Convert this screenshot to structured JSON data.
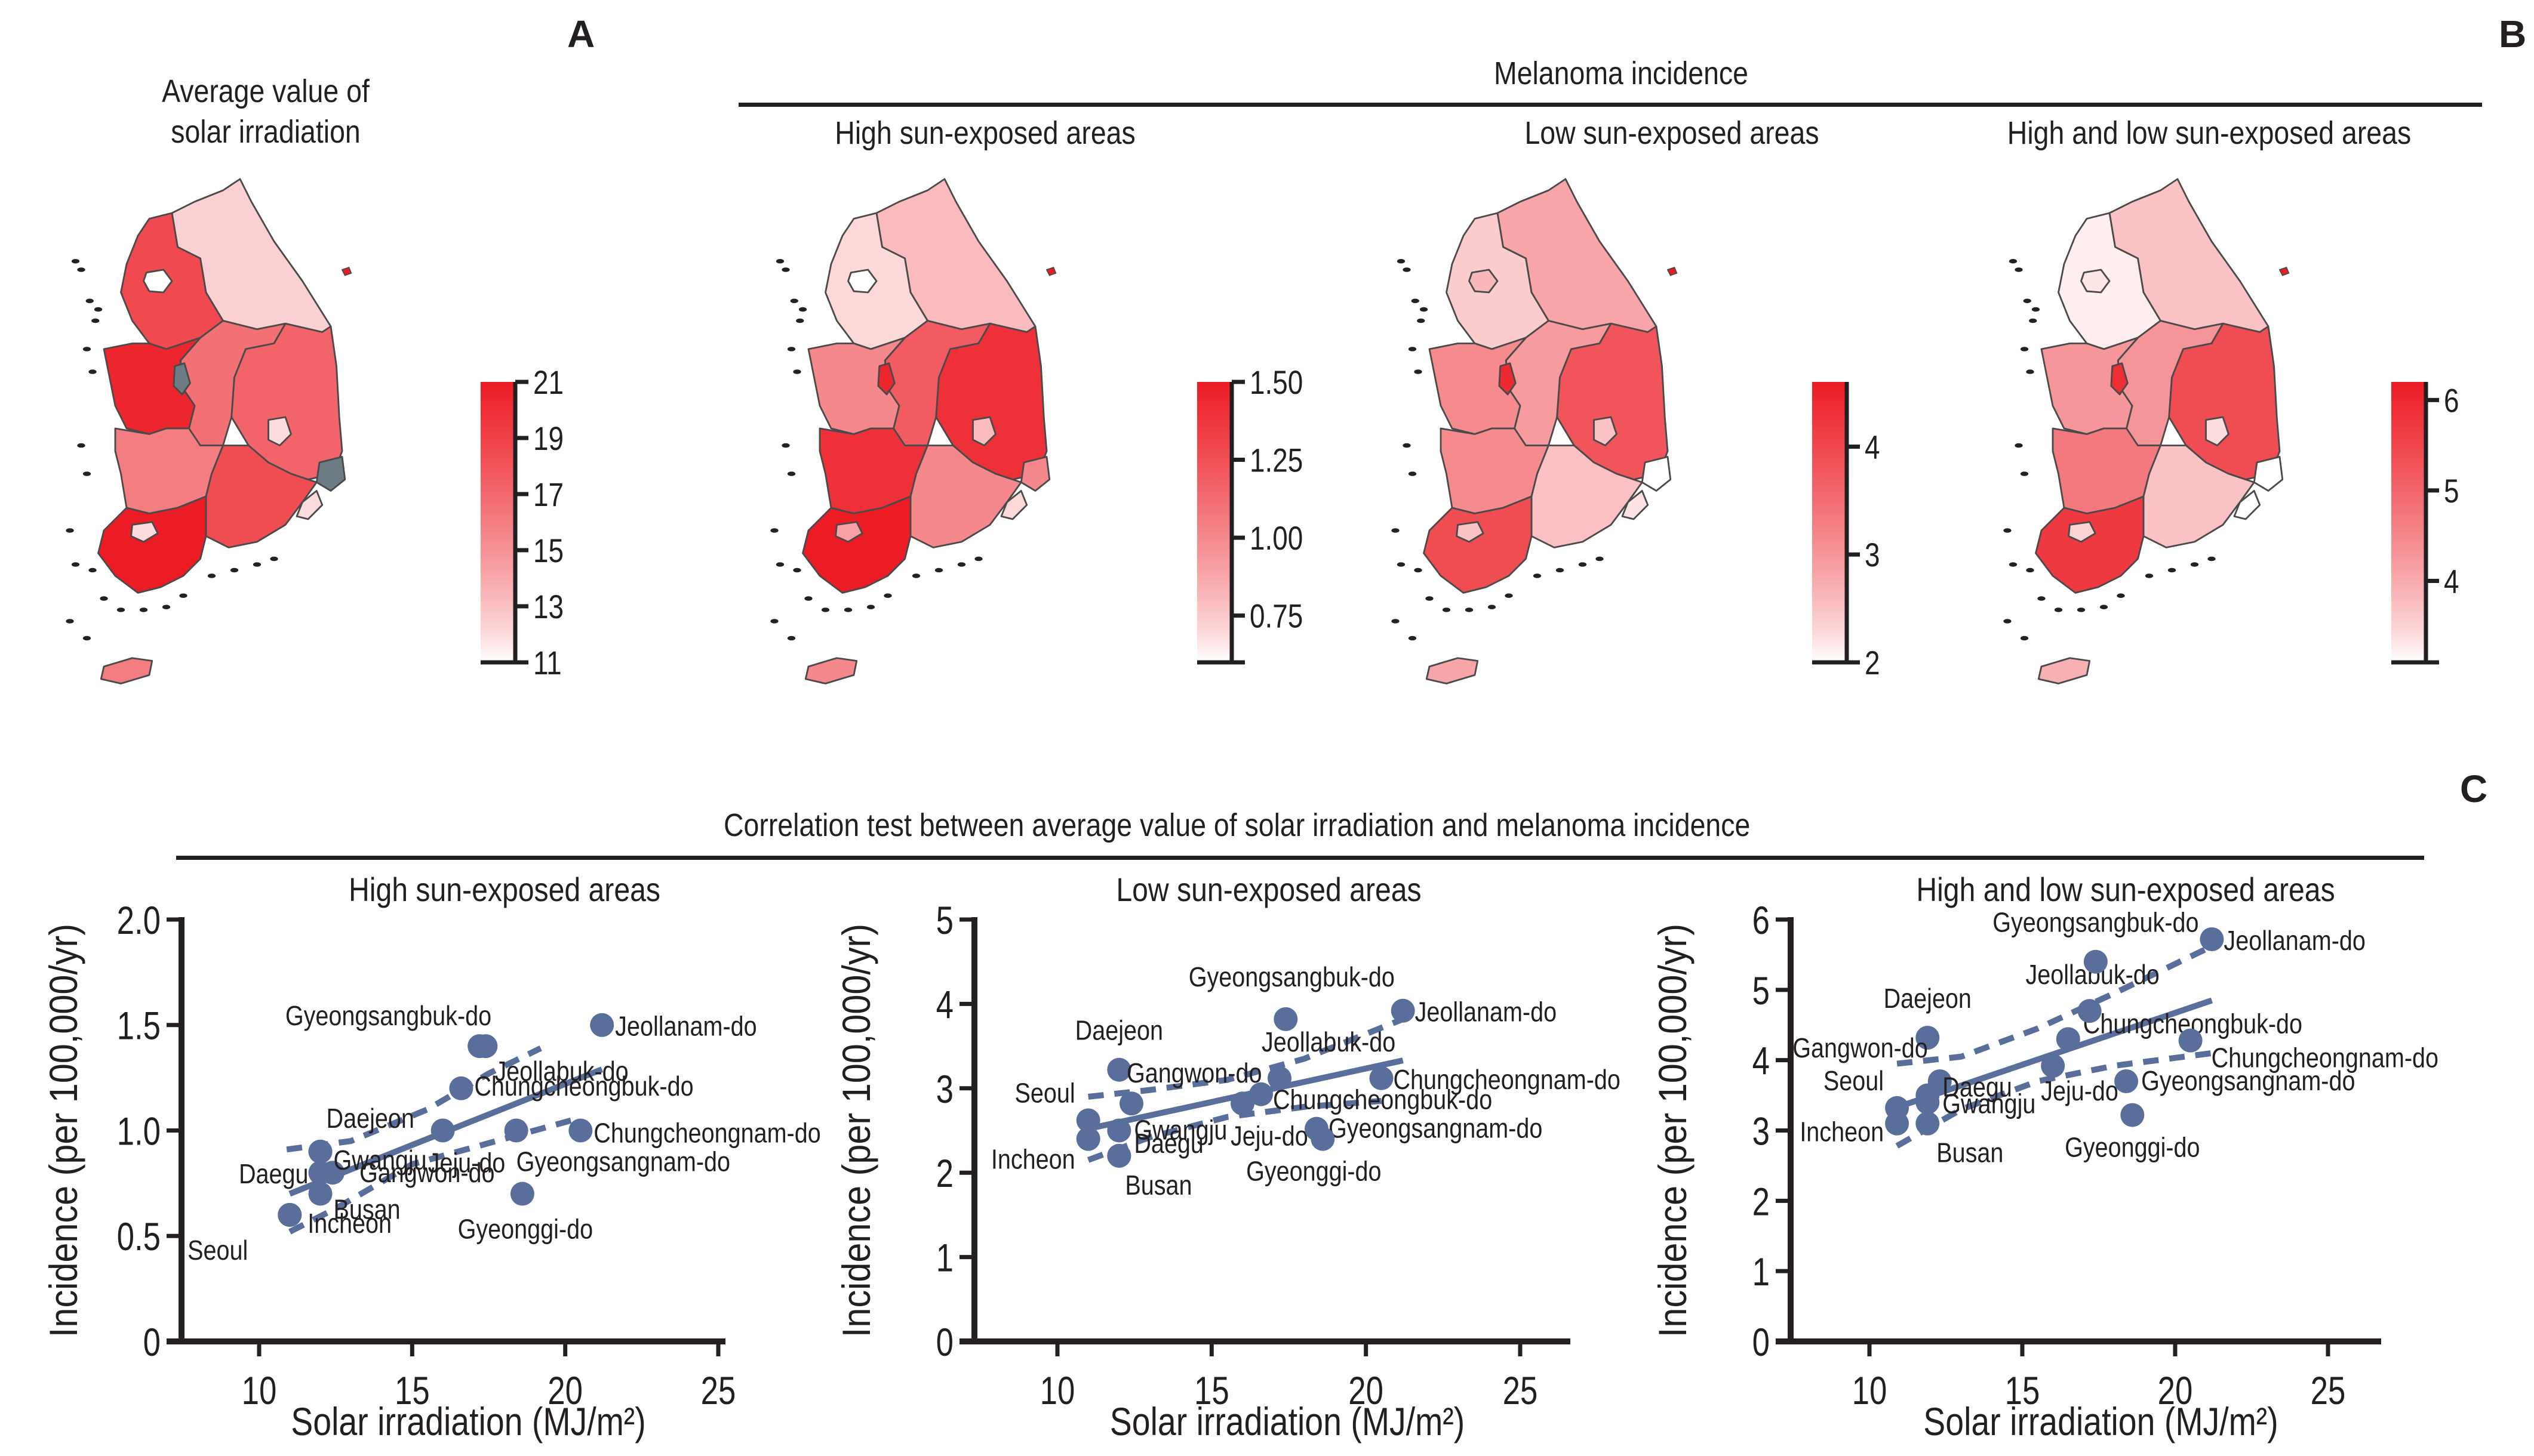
{
  "panel_labels": {
    "a": "A",
    "b": "B",
    "c": "C"
  },
  "panel_a": {
    "title_line1": "Average value of",
    "title_line2": "solar irradiation"
  },
  "panel_b": {
    "header": "Melanoma incidence",
    "subtitles": [
      "High sun-exposed areas",
      "Low sun-exposed areas",
      "High and low sun-exposed areas"
    ]
  },
  "panel_c": {
    "header": "Correlation test between average value of solar irradiation and melanoma incidence"
  },
  "colors": {
    "scale_low": "#ffffff",
    "scale_high": "#ec1c24",
    "point": "#5a6e9c",
    "line": "#5a6e9c",
    "axis": "#231f20",
    "missing": "#6d7b85",
    "border": "#4a4a4a"
  },
  "maps": [
    {
      "id": "solar",
      "colorbar": {
        "min": 11,
        "max": 21,
        "ticks": [
          11,
          13,
          15,
          17,
          19,
          21
        ],
        "tick_labels": [
          "11",
          "13",
          "15",
          "17",
          "19",
          "21"
        ]
      },
      "regions": {
        "Gyeonggi-do": 18.6,
        "Gangwon-do": 12.4,
        "Chungcheongnam-do": 20.5,
        "Chungcheongbuk-do": 16.6,
        "Gyeongsangbuk-do": 17.2,
        "Jeollabuk-do": 16.0,
        "Gyeongsangnam-do": 18.4,
        "Jeollanam-do": 21.2,
        "Jeju-do": 16.0,
        "Seoul": 11.0,
        "Daejeon": null,
        "Daegu": 12.0,
        "Gwangju": 12.0,
        "Busan": 12.0,
        "Ulsan": null
      }
    },
    {
      "id": "high",
      "colorbar": {
        "min": 0.6,
        "max": 1.5,
        "ticks": [
          0.75,
          1.0,
          1.25,
          1.5
        ],
        "tick_labels": [
          "0.75",
          "1.00",
          "1.25",
          "1.50"
        ]
      },
      "regions": {
        "Gyeonggi-do": 0.7,
        "Gangwon-do": 0.8,
        "Chungcheongnam-do": 1.0,
        "Chungcheongbuk-do": 1.2,
        "Gyeongsangbuk-do": 1.4,
        "Jeollabuk-do": 1.4,
        "Gyeongsangnam-do": 1.0,
        "Jeollanam-do": 1.5,
        "Jeju-do": 1.0,
        "Seoul": 0.6,
        "Daejeon": 1.45,
        "Daegu": 0.8,
        "Gwangju": 0.9,
        "Busan": 0.7,
        "Ulsan": 1.0
      }
    },
    {
      "id": "low",
      "colorbar": {
        "min": 2,
        "max": 4.6,
        "ticks": [
          2,
          3,
          4
        ],
        "tick_labels": [
          "2",
          "3",
          "4"
        ]
      },
      "regions": {
        "Gyeonggi-do": 2.4,
        "Gangwon-do": 2.82,
        "Chungcheongnam-do": 3.12,
        "Chungcheongbuk-do": 2.93,
        "Gyeongsangbuk-do": 3.82,
        "Jeollabuk-do": 3.12,
        "Gyeongsangnam-do": 2.52,
        "Jeollanam-do": 3.92,
        "Jeju-do": 2.82,
        "Seoul": 2.62,
        "Daejeon": 4.4,
        "Daegu": 2.5,
        "Gwangju": 2.5,
        "Busan": 2.2,
        "Ulsan": 2.0
      }
    },
    {
      "id": "both",
      "colorbar": {
        "min": 3.1,
        "max": 6.2,
        "ticks": [
          4,
          5,
          6
        ],
        "tick_labels": [
          "4",
          "5",
          "6"
        ]
      },
      "regions": {
        "Gyeonggi-do": 3.22,
        "Gangwon-do": 3.7,
        "Chungcheongnam-do": 4.28,
        "Chungcheongbuk-do": 4.3,
        "Gyeongsangbuk-do": 5.4,
        "Jeollabuk-do": 4.7,
        "Gyeongsangnam-do": 3.7,
        "Jeollanam-do": 5.72,
        "Jeju-do": 3.92,
        "Seoul": 3.32,
        "Daejeon": 5.9,
        "Daegu": 3.4,
        "Gwangju": 3.5,
        "Busan": 3.1,
        "Ulsan": 3.1
      }
    }
  ],
  "chart_data": [
    {
      "type": "scatter",
      "title": "High sun-exposed areas",
      "xlabel": "Solar irradiation (MJ/m²)",
      "ylabel": "Incidence (per 100,000/yr)",
      "xlim": [
        7.5,
        26.5
      ],
      "ylim": [
        0,
        2.0
      ],
      "xticks": [
        10,
        15,
        20,
        25
      ],
      "yticks": [
        0,
        0.5,
        1.0,
        1.5,
        2.0
      ],
      "ytick_labels": [
        "0",
        "0.5",
        "1.0",
        "1.5",
        "2.0"
      ],
      "grid": false,
      "points": [
        {
          "label": "Seoul",
          "x": 11.0,
          "y": 0.6
        },
        {
          "label": "Incheon",
          "x": 11.0,
          "y": 0.6
        },
        {
          "label": "Busan",
          "x": 12.0,
          "y": 0.7
        },
        {
          "label": "Daegu",
          "x": 12.0,
          "y": 0.8
        },
        {
          "label": "Gangwon-do",
          "x": 12.4,
          "y": 0.8
        },
        {
          "label": "Gwangju",
          "x": 12.0,
          "y": 0.9
        },
        {
          "label": "Daejeon",
          "x": 12.0,
          "y": 0.9
        },
        {
          "label": "Jeju-do",
          "x": 16.0,
          "y": 1.0
        },
        {
          "label": "Chungcheongbuk-do",
          "x": 16.6,
          "y": 1.2
        },
        {
          "label": "Gyeongsangbuk-do",
          "x": 17.2,
          "y": 1.4
        },
        {
          "label": "Jeollabuk-do",
          "x": 17.4,
          "y": 1.4
        },
        {
          "label": "Jeollanam-do",
          "x": 21.2,
          "y": 1.5
        },
        {
          "label": "Chungcheongnam-do",
          "x": 20.5,
          "y": 1.0
        },
        {
          "label": "Gyeongsangnam-do",
          "x": 18.4,
          "y": 1.0
        },
        {
          "label": "Gyeonggi-do",
          "x": 18.6,
          "y": 0.7
        }
      ],
      "fit": {
        "x": [
          11.0,
          21.2
        ],
        "y": [
          0.7,
          1.29
        ]
      },
      "ci_upper": {
        "x": [
          10.9,
          13.0,
          15.5,
          17.5,
          19.2
        ],
        "y": [
          0.91,
          0.95,
          1.1,
          1.27,
          1.39
        ]
      },
      "ci_lower": {
        "x": [
          11.0,
          12.5,
          15.0,
          18.0,
          20.5
        ],
        "y": [
          0.52,
          0.63,
          0.84,
          0.96,
          1.06
        ]
      }
    },
    {
      "type": "scatter",
      "title": "Low sun-exposed areas",
      "xlabel": "Solar irradiation (MJ/m²)",
      "ylabel": "Incidence (per 100,000/yr)",
      "xlim": [
        7.5,
        26.5
      ],
      "ylim": [
        0,
        5
      ],
      "xticks": [
        10,
        15,
        20,
        25
      ],
      "yticks": [
        0,
        1,
        2,
        3,
        4,
        5
      ],
      "ytick_labels": [
        "0",
        "1",
        "2",
        "3",
        "4",
        "5"
      ],
      "grid": false,
      "points": [
        {
          "label": "Seoul",
          "x": 11.0,
          "y": 2.62
        },
        {
          "label": "Incheon",
          "x": 11.0,
          "y": 2.4
        },
        {
          "label": "Daejeon",
          "x": 12.0,
          "y": 3.22
        },
        {
          "label": "Gwangju",
          "x": 12.0,
          "y": 2.5
        },
        {
          "label": "Daegu",
          "x": 12.0,
          "y": 2.2
        },
        {
          "label": "Busan",
          "x": 12.0,
          "y": 2.2
        },
        {
          "label": "Gangwon-do",
          "x": 12.4,
          "y": 2.82
        },
        {
          "label": "Jeju-do",
          "x": 16.0,
          "y": 2.82
        },
        {
          "label": "Chungcheongbuk-do",
          "x": 16.6,
          "y": 2.93
        },
        {
          "label": "Jeollabuk-do",
          "x": 17.2,
          "y": 3.12
        },
        {
          "label": "Gyeongsangbuk-do",
          "x": 17.4,
          "y": 3.82
        },
        {
          "label": "Jeollanam-do",
          "x": 21.2,
          "y": 3.92
        },
        {
          "label": "Chungcheongnam-do",
          "x": 20.5,
          "y": 3.12
        },
        {
          "label": "Gyeongsangnam-do",
          "x": 18.4,
          "y": 2.52
        },
        {
          "label": "Gyeonggi-do",
          "x": 18.6,
          "y": 2.4
        }
      ],
      "fit": {
        "x": [
          11.0,
          21.2
        ],
        "y": [
          2.52,
          3.33
        ]
      },
      "ci_upper": {
        "x": [
          11.0,
          13.0,
          15.5,
          18.0,
          21.2
        ],
        "y": [
          2.9,
          2.98,
          3.1,
          3.35,
          3.82
        ]
      },
      "ci_lower": {
        "x": [
          11.0,
          13.0,
          15.5,
          18.0,
          20.5
        ],
        "y": [
          2.15,
          2.42,
          2.66,
          2.78,
          2.85
        ]
      }
    },
    {
      "type": "scatter",
      "title": "High and low sun-exposed areas",
      "xlabel": "Solar irradiation (MJ/m²)",
      "ylabel": "Incidence (per 100,000/yr)",
      "xlim": [
        7.5,
        26.5
      ],
      "ylim": [
        0,
        6
      ],
      "xticks": [
        10,
        15,
        20,
        25
      ],
      "yticks": [
        0,
        1,
        2,
        3,
        4,
        5,
        6
      ],
      "ytick_labels": [
        "0",
        "1",
        "2",
        "3",
        "4",
        "5",
        "6"
      ],
      "grid": false,
      "points": [
        {
          "label": "Seoul",
          "x": 10.9,
          "y": 3.32
        },
        {
          "label": "Incheon",
          "x": 10.9,
          "y": 3.1
        },
        {
          "label": "Daejeon",
          "x": 11.9,
          "y": 4.32
        },
        {
          "label": "Gangwon-do",
          "x": 12.3,
          "y": 3.7
        },
        {
          "label": "Gwangju",
          "x": 11.9,
          "y": 3.5
        },
        {
          "label": "Daegu",
          "x": 11.9,
          "y": 3.4
        },
        {
          "label": "Busan",
          "x": 11.9,
          "y": 3.1
        },
        {
          "label": "Jeju-do",
          "x": 16.0,
          "y": 3.92
        },
        {
          "label": "Chungcheongbuk-do",
          "x": 16.5,
          "y": 4.3
        },
        {
          "label": "Jeollabuk-do",
          "x": 17.2,
          "y": 4.7
        },
        {
          "label": "Gyeongsangbuk-do",
          "x": 17.4,
          "y": 5.4
        },
        {
          "label": "Jeollanam-do",
          "x": 21.2,
          "y": 5.72
        },
        {
          "label": "Chungcheongnam-do",
          "x": 20.5,
          "y": 4.28
        },
        {
          "label": "Gyeongsangnam-do",
          "x": 18.4,
          "y": 3.7
        },
        {
          "label": "Gyeonggi-do",
          "x": 18.6,
          "y": 3.22
        }
      ],
      "fit": {
        "x": [
          10.9,
          21.2
        ],
        "y": [
          3.33,
          4.85
        ]
      },
      "ci_upper": {
        "x": [
          10.9,
          13.0,
          15.5,
          18.0,
          21.2
        ],
        "y": [
          3.95,
          4.05,
          4.45,
          4.95,
          5.62
        ]
      },
      "ci_lower": {
        "x": [
          10.9,
          13.0,
          15.5,
          18.0,
          21.2
        ],
        "y": [
          2.78,
          3.3,
          3.7,
          3.92,
          4.1
        ]
      }
    }
  ]
}
